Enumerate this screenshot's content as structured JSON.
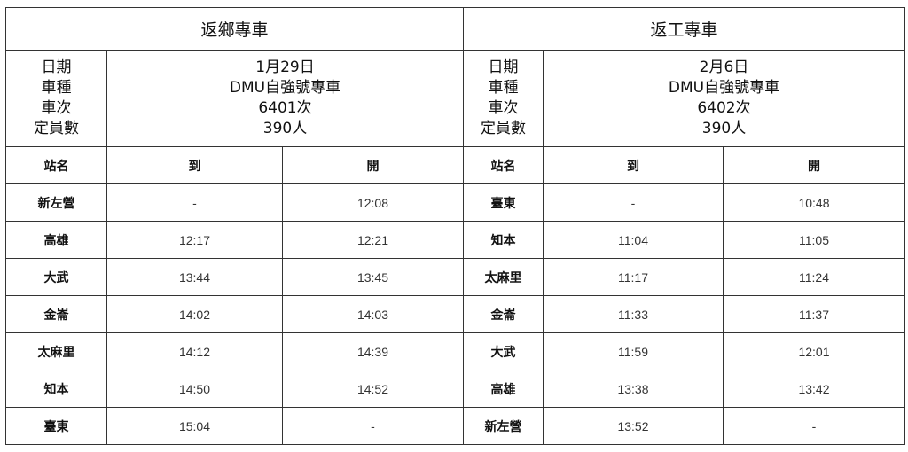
{
  "sections": [
    {
      "title": "返鄉專車",
      "info_labels": [
        "日期",
        "車種",
        "車次",
        "定員數"
      ],
      "info_values": [
        "1月29日",
        "DMU自強號專車",
        "6401次",
        "390人"
      ],
      "columns": [
        "站名",
        "到",
        "開"
      ],
      "rows": [
        {
          "station": "新左營",
          "arrive": "-",
          "depart": "12:08"
        },
        {
          "station": "高雄",
          "arrive": "12:17",
          "depart": "12:21"
        },
        {
          "station": "大武",
          "arrive": "13:44",
          "depart": "13:45"
        },
        {
          "station": "金崙",
          "arrive": "14:02",
          "depart": "14:03"
        },
        {
          "station": "太麻里",
          "arrive": "14:12",
          "depart": "14:39"
        },
        {
          "station": "知本",
          "arrive": "14:50",
          "depart": "14:52"
        },
        {
          "station": "臺東",
          "arrive": "15:04",
          "depart": "-"
        }
      ]
    },
    {
      "title": "返工專車",
      "info_labels": [
        "日期",
        "車種",
        "車次",
        "定員數"
      ],
      "info_values": [
        "2月6日",
        "DMU自強號專車",
        "6402次",
        "390人"
      ],
      "columns": [
        "站名",
        "到",
        "開"
      ],
      "rows": [
        {
          "station": "臺東",
          "arrive": "-",
          "depart": "10:48"
        },
        {
          "station": "知本",
          "arrive": "11:04",
          "depart": "11:05"
        },
        {
          "station": "太麻里",
          "arrive": "11:17",
          "depart": "11:24"
        },
        {
          "station": "金崙",
          "arrive": "11:33",
          "depart": "11:37"
        },
        {
          "station": "大武",
          "arrive": "11:59",
          "depart": "12:01"
        },
        {
          "station": "高雄",
          "arrive": "13:38",
          "depart": "13:42"
        },
        {
          "station": "新左營",
          "arrive": "13:52",
          "depart": "-"
        }
      ]
    }
  ]
}
